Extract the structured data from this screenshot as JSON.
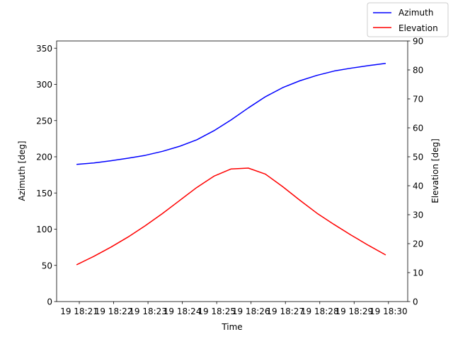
{
  "chart_data": {
    "type": "line",
    "xlabel": "Time",
    "ylabel_left": "Azimuth [deg]",
    "ylabel_right": "Elevation [deg]",
    "x_ticks": [
      "19 18:21",
      "19 18:22",
      "19 18:23",
      "19 18:24",
      "19 18:25",
      "19 18:26",
      "19 18:27",
      "19 18:28",
      "19 18:29",
      "19 18:30"
    ],
    "x_tick_values": [
      0,
      1,
      2,
      3,
      4,
      5,
      6,
      7,
      8,
      9
    ],
    "xlim": [
      -0.66,
      9.56
    ],
    "ylim_left": [
      0,
      360
    ],
    "ylim_right": [
      0,
      90
    ],
    "yticks_left": [
      0,
      50,
      100,
      150,
      200,
      250,
      300,
      350
    ],
    "yticks_right": [
      0,
      10,
      20,
      30,
      40,
      50,
      60,
      70,
      80,
      90
    ],
    "legend": {
      "position": "top-right"
    },
    "series": [
      {
        "name": "Azimuth",
        "color": "#0000ff",
        "axis": "left",
        "x": [
          -0.08,
          0.42,
          0.92,
          1.42,
          1.92,
          2.42,
          2.92,
          3.42,
          3.92,
          4.42,
          4.92,
          5.42,
          5.92,
          6.42,
          6.92,
          7.42,
          7.92,
          8.42,
          8.92
        ],
        "y": [
          189.5,
          191.5,
          194.5,
          198,
          202,
          207.5,
          214.5,
          223.5,
          236,
          251,
          267.5,
          283,
          295.5,
          305,
          312.5,
          318.5,
          322.5,
          326,
          329
        ]
      },
      {
        "name": "Elevation",
        "color": "#ff0000",
        "axis": "right",
        "x": [
          -0.08,
          0.42,
          0.92,
          1.42,
          1.92,
          2.42,
          2.92,
          3.42,
          3.92,
          4.42,
          4.92,
          5.42,
          5.92,
          6.42,
          6.92,
          7.42,
          7.92,
          8.42,
          8.92
        ],
        "y": [
          12.7,
          15.6,
          18.8,
          22.3,
          26.2,
          30.4,
          34.9,
          39.4,
          43.3,
          45.8,
          46.1,
          44.0,
          39.7,
          35.0,
          30.5,
          26.6,
          22.9,
          19.4,
          16.1
        ]
      }
    ]
  }
}
